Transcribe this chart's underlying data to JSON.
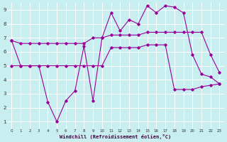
{
  "xlabel": "Windchill (Refroidissement éolien,°C)",
  "background_color": "#c8eef0",
  "grid_color": "#ffffff",
  "line_color": "#990099",
  "xlim": [
    -0.5,
    23.5
  ],
  "ylim": [
    0.5,
    9.5
  ],
  "xticks": [
    0,
    1,
    2,
    3,
    4,
    5,
    6,
    7,
    8,
    9,
    10,
    11,
    12,
    13,
    14,
    15,
    16,
    17,
    18,
    19,
    20,
    21,
    22,
    23
  ],
  "yticks": [
    1,
    2,
    3,
    4,
    5,
    6,
    7,
    8,
    9
  ],
  "line_volatile_x": [
    0,
    1,
    2,
    3,
    4,
    5,
    6,
    7,
    8,
    9,
    10,
    11,
    12,
    13,
    14,
    15,
    16,
    17,
    18,
    19,
    20,
    21,
    22,
    23
  ],
  "line_volatile_y": [
    6.8,
    5.0,
    5.0,
    5.0,
    2.4,
    1.0,
    2.5,
    3.2,
    6.4,
    2.5,
    7.0,
    8.8,
    7.5,
    8.3,
    8.0,
    9.3,
    8.8,
    9.3,
    9.2,
    8.8,
    5.8,
    4.4,
    4.2,
    3.7
  ],
  "line_upper_x": [
    0,
    1,
    2,
    3,
    4,
    5,
    6,
    7,
    8,
    9,
    10,
    11,
    12,
    13,
    14,
    15,
    16,
    17,
    18,
    19,
    20,
    21,
    22,
    23
  ],
  "line_upper_y": [
    6.8,
    6.6,
    6.6,
    6.6,
    6.6,
    6.6,
    6.6,
    6.6,
    6.6,
    7.0,
    7.0,
    7.2,
    7.2,
    7.2,
    7.2,
    7.4,
    7.4,
    7.4,
    7.4,
    7.4,
    7.4,
    7.4,
    5.8,
    4.5
  ],
  "line_lower_x": [
    0,
    1,
    2,
    3,
    4,
    5,
    6,
    7,
    8,
    9,
    10,
    11,
    12,
    13,
    14,
    15,
    16,
    17,
    18,
    19,
    20,
    21,
    22,
    23
  ],
  "line_lower_y": [
    5.0,
    5.0,
    5.0,
    5.0,
    5.0,
    5.0,
    5.0,
    5.0,
    5.0,
    5.0,
    5.0,
    6.3,
    6.3,
    6.3,
    6.3,
    6.5,
    6.5,
    6.5,
    3.3,
    3.3,
    3.3,
    3.5,
    3.6,
    3.7
  ]
}
